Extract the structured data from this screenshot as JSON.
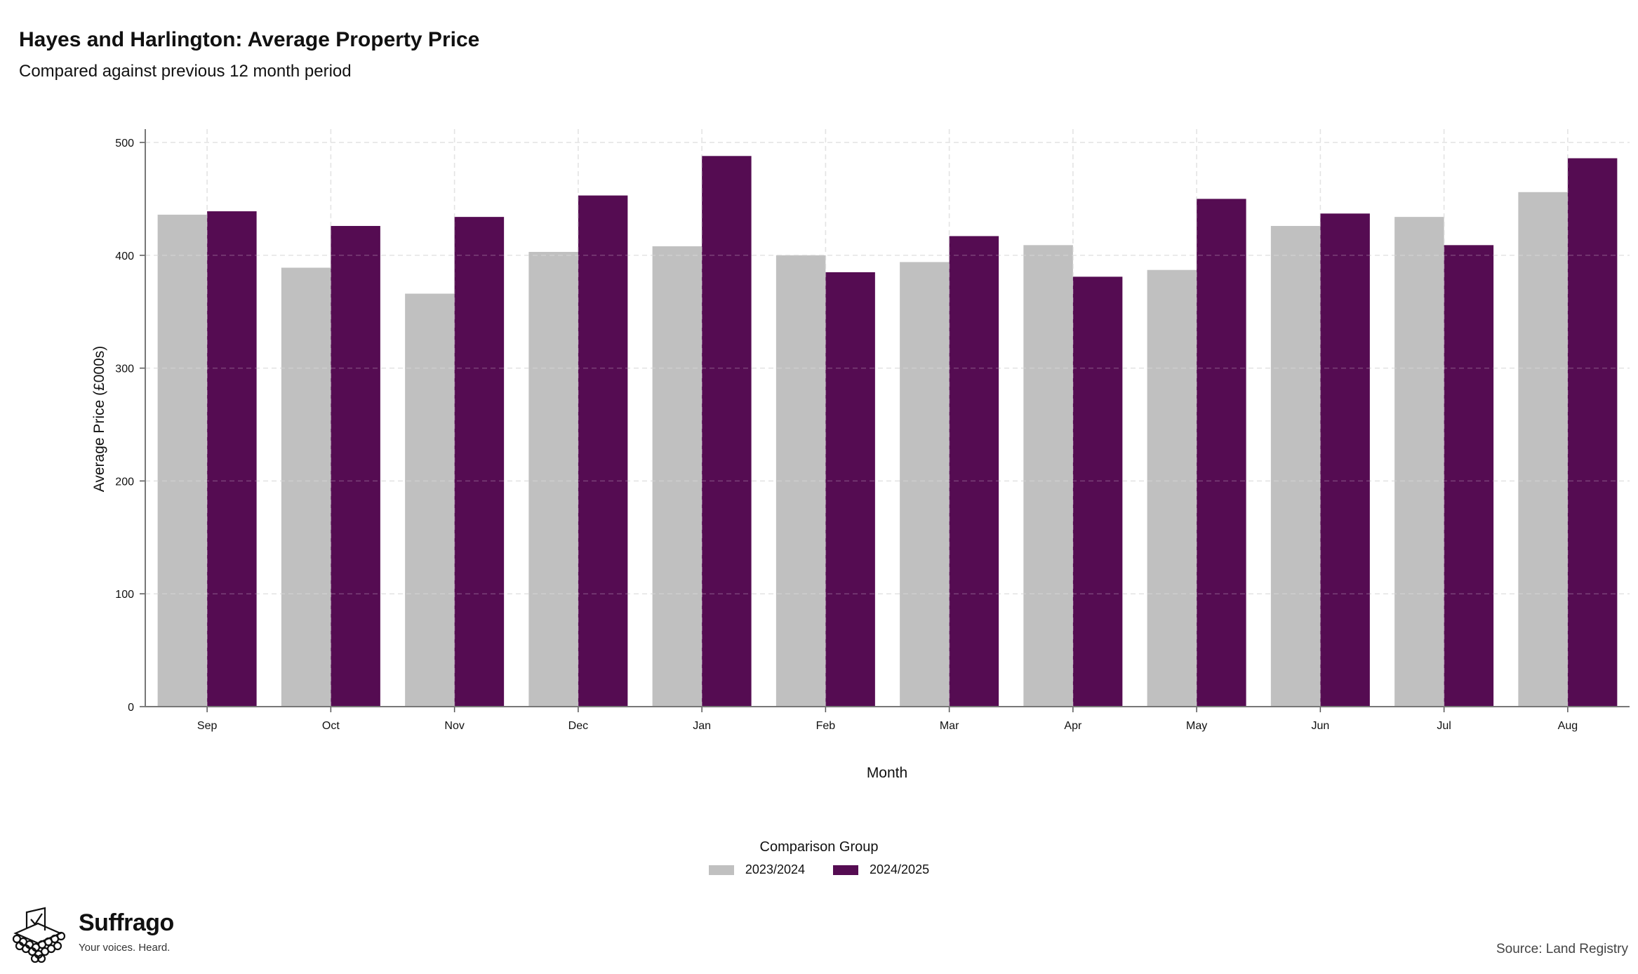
{
  "header": {
    "title": "Hayes and Harlington: Average Property Price",
    "subtitle": "Compared against previous 12 month period"
  },
  "chart_data": {
    "type": "bar",
    "title": "Hayes and Harlington: Average Property Price",
    "subtitle": "Compared against previous 12 month period",
    "xlabel": "Month",
    "ylabel": "Average Price (£000s)",
    "ylim": [
      0,
      500
    ],
    "yticks": [
      0,
      100,
      200,
      300,
      400,
      500
    ],
    "grid": true,
    "legend_position": "bottom-center",
    "legend_title": "Comparison Group",
    "categories": [
      "Sep",
      "Oct",
      "Nov",
      "Dec",
      "Jan",
      "Feb",
      "Mar",
      "Apr",
      "May",
      "Jun",
      "Jul",
      "Aug"
    ],
    "series": [
      {
        "name": "2023/2024",
        "color": "#c0c0c0",
        "values": [
          436,
          389,
          366,
          403,
          408,
          400,
          394,
          409,
          387,
          426,
          434,
          456
        ]
      },
      {
        "name": "2024/2025",
        "color": "#550c52",
        "values": [
          439,
          426,
          434,
          453,
          488,
          385,
          417,
          381,
          450,
          437,
          409,
          486
        ]
      }
    ]
  },
  "legend": {
    "title": "Comparison Group",
    "items": [
      {
        "label": "2023/2024",
        "color": "#c0c0c0"
      },
      {
        "label": "2024/2025",
        "color": "#550c52"
      }
    ]
  },
  "footer": {
    "brand_name": "Suffrago",
    "brand_tagline": "Your voices. Heard.",
    "logo_icon": "ballot-box-icon",
    "source": "Source: Land Registry"
  }
}
